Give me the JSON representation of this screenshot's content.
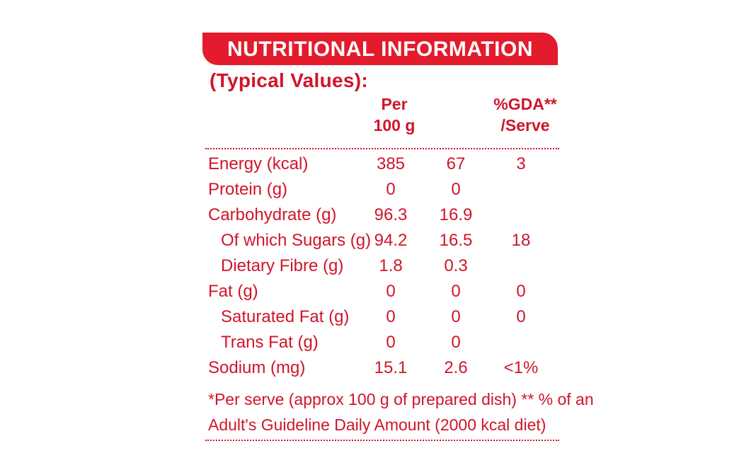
{
  "title": "NUTRITIONAL INFORMATION",
  "subtitle": "(Typical Values):",
  "headers": {
    "per100_line1": "Per",
    "per100_line2": "100 g",
    "per_serve": "",
    "gda_line1": "%GDA**",
    "gda_line2": "/Serve"
  },
  "rows": [
    {
      "name": "Energy (kcal)",
      "per100": "385",
      "serve": "67",
      "gda": "3"
    },
    {
      "name": "Protein (g)",
      "per100": "0",
      "serve": "0",
      "gda": ""
    },
    {
      "name": "Carbohydrate (g)",
      "per100": "96.3",
      "serve": "16.9",
      "gda": ""
    },
    {
      "name": "Of which Sugars (g)",
      "per100": "94.2",
      "serve": "16.5",
      "gda": "18"
    },
    {
      "name": "Dietary Fibre (g)",
      "per100": "1.8",
      "serve": "0.3",
      "gda": ""
    },
    {
      "name": "Fat (g)",
      "per100": "0",
      "serve": "0",
      "gda": "0"
    },
    {
      "name": "Saturated Fat (g)",
      "per100": "0",
      "serve": "0",
      "gda": "0"
    },
    {
      "name": "Trans Fat (g)",
      "per100": "0",
      "serve": "0",
      "gda": ""
    },
    {
      "name": "Sodium (mg)",
      "per100": "15.1",
      "serve": "2.6",
      "gda": "<1%"
    }
  ],
  "footnote": {
    "line1": "*Per serve (approx 100 g of prepared dish) ** % of an",
    "line2": "Adult's Guideline Daily Amount (2000 kcal diet)"
  },
  "colors": {
    "accent": "#e31b2c",
    "text": "#d0152a",
    "background": "#ffffff"
  }
}
